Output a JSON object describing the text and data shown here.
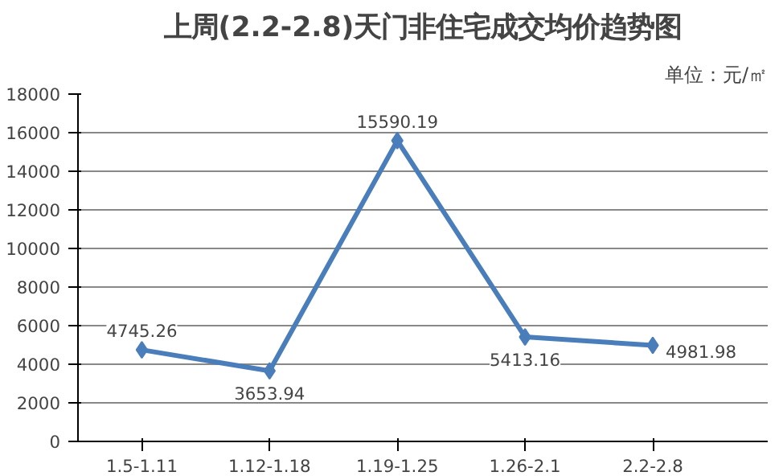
{
  "chart_data": {
    "type": "line",
    "title": "上周(2.2-2.8)天门非住宅成交均价趋势图",
    "subtitle": "单位：元/㎡",
    "categories": [
      "1.5-1.11",
      "1.12-1.18",
      "1.19-1.25",
      "1.26-2.1",
      "2.2-2.8"
    ],
    "series": [
      {
        "color": "#4a7ebb",
        "values": [
          4745.26,
          3653.94,
          15590.19,
          5413.16,
          4981.98
        ]
      }
    ],
    "ylim": [
      0,
      18000
    ],
    "yticks": [
      0,
      2000,
      4000,
      6000,
      8000,
      10000,
      12000,
      14000,
      16000,
      18000
    ],
    "grid": "y",
    "marker": "diamond",
    "data_labels": true
  }
}
